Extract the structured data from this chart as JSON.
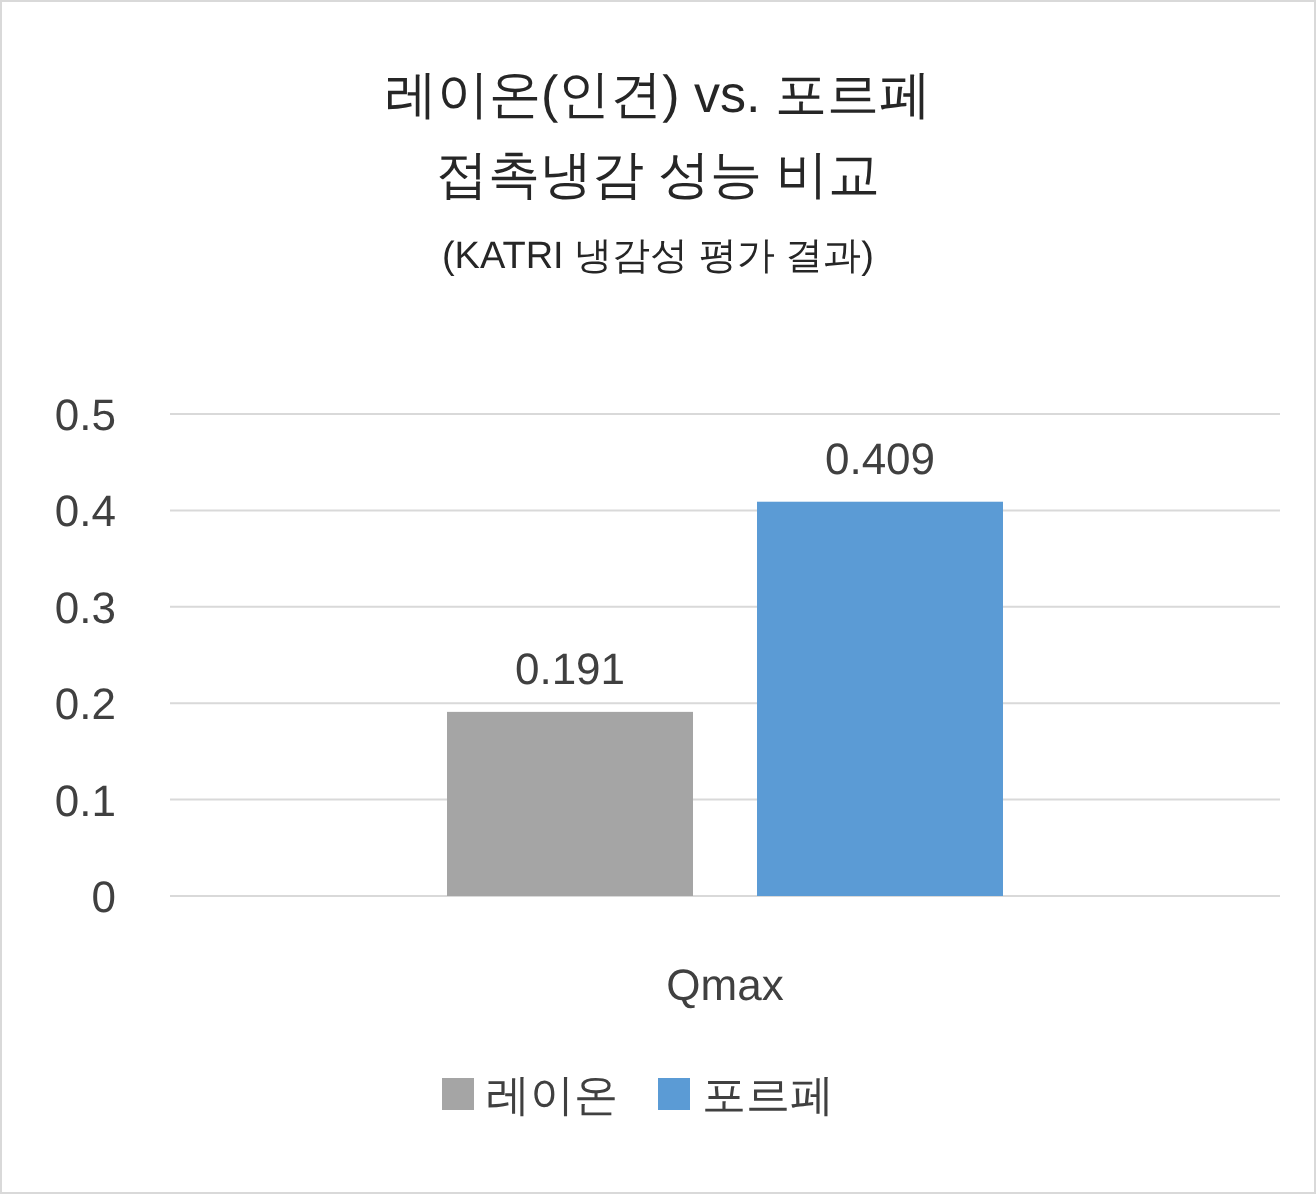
{
  "chart_data": {
    "type": "bar",
    "title": "레이온(인견) vs. 포르페\n접촉냉감 성능 비교",
    "subtitle": "(KATRI 냉감성 평가 결과)",
    "categories": [
      "Qmax"
    ],
    "series": [
      {
        "name": "레이온",
        "color": "#a5a5a5",
        "values": [
          0.191
        ]
      },
      {
        "name": "포르페",
        "color": "#5b9bd5",
        "values": [
          0.409
        ]
      }
    ],
    "ylim": [
      0,
      0.5
    ],
    "yticks": [
      0,
      0.1,
      0.2,
      0.3,
      0.4,
      0.5
    ],
    "grid": "y",
    "legend": "bottom",
    "data_labels": true
  }
}
